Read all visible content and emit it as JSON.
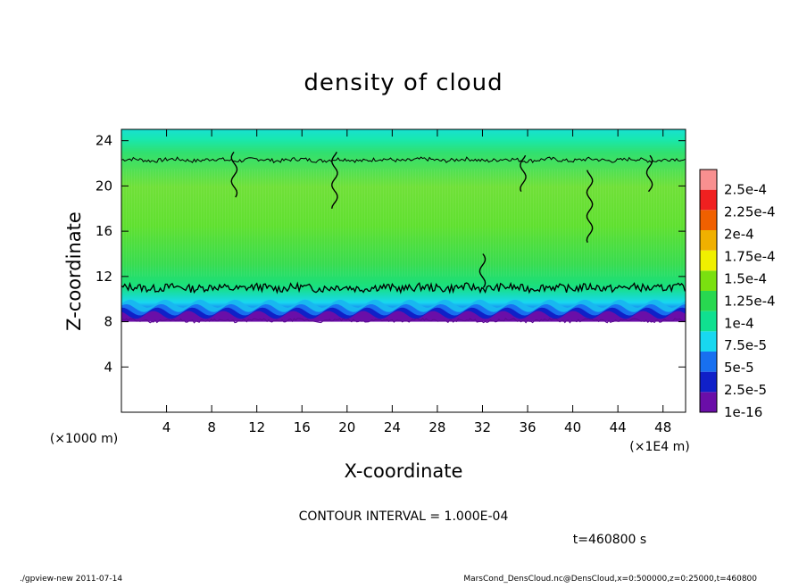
{
  "chart_data": {
    "type": "heatmap",
    "title": "density of cloud",
    "xlabel": "X-coordinate",
    "ylabel": "Z-coordinate",
    "x_unit_label": "(×1E4 m)",
    "y_unit_label": "(×1000 m)",
    "xlim": [
      0,
      50
    ],
    "ylim": [
      0,
      25
    ],
    "x_ticks": [
      4,
      8,
      12,
      16,
      20,
      24,
      28,
      32,
      36,
      40,
      44,
      48
    ],
    "y_ticks": [
      4,
      8,
      12,
      16,
      20,
      24
    ],
    "colorbar": {
      "labels": [
        "1e-16",
        "2.5e-5",
        "5e-5",
        "7.5e-5",
        "1e-4",
        "1.25e-4",
        "1.5e-4",
        "1.75e-4",
        "2e-4",
        "2.25e-4",
        "2.5e-4"
      ],
      "colors": [
        "#6a0ea8",
        "#1020c8",
        "#1870f0",
        "#18d8f0",
        "#10e090",
        "#28d850",
        "#7ae010",
        "#f0f000",
        "#f0b000",
        "#f06000",
        "#f02020",
        "#f89090"
      ]
    },
    "contour_interval_text": "CONTOUR INTERVAL = 1.000E-04",
    "cloud_layer": {
      "bottom_z": 8,
      "dense_band_top_z": 11,
      "top_z": 22.3
    }
  },
  "time_label": "t=460800 s",
  "footer": {
    "left": "./gpview-new  2011-07-14",
    "right": "MarsCond_DensCloud.nc@DensCloud,x=0:500000,z=0:25000,t=460800"
  }
}
